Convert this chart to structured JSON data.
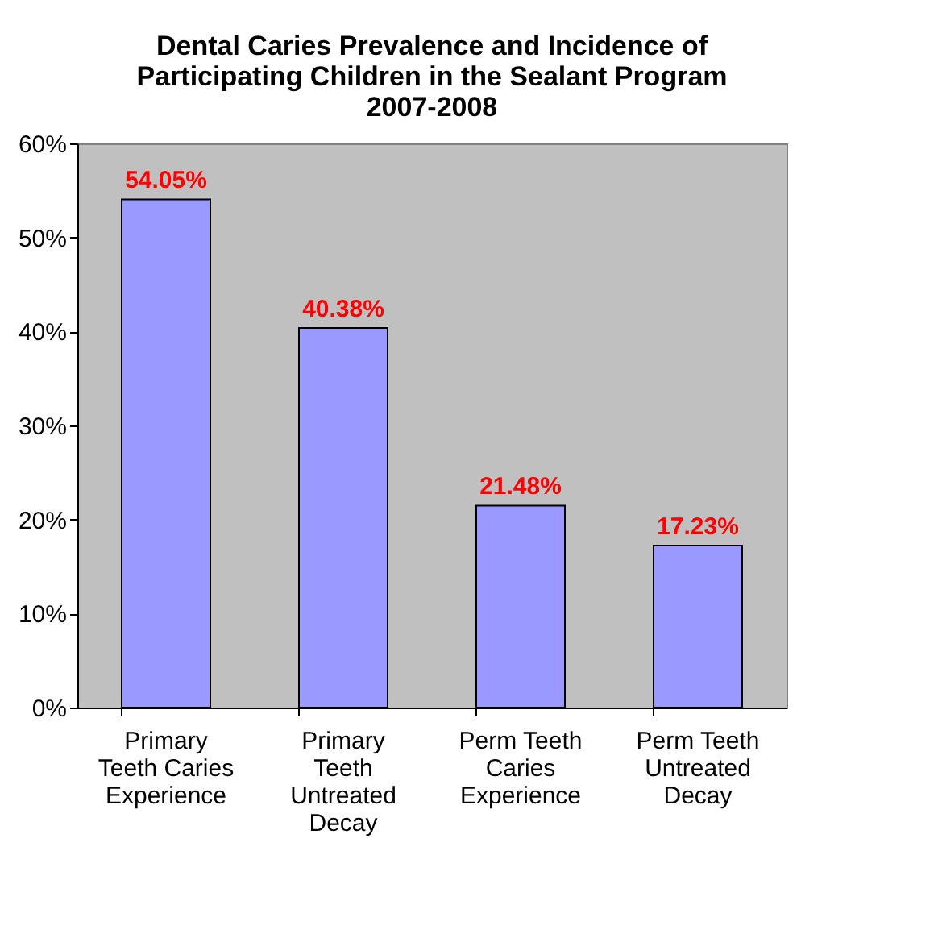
{
  "chart_data": {
    "type": "bar",
    "title": "Dental Caries Prevalence and Incidence of Participating Children in the Sealant Program 2007-2008",
    "categories": [
      "Primary Teeth Caries Experience",
      "Primary Teeth Untreated Decay",
      "Perm Teeth Caries Experience",
      "Perm Teeth Untreated Decay"
    ],
    "values": [
      54.05,
      40.38,
      21.48,
      17.23
    ],
    "value_labels": [
      "54.05%",
      "40.38%",
      "21.48%",
      "17.23%"
    ],
    "color": "#9999ff",
    "ylim": [
      0,
      60
    ],
    "yticks": [
      {
        "value": 0,
        "label": "0%"
      },
      {
        "value": 10,
        "label": "10%"
      },
      {
        "value": 20,
        "label": "20%"
      },
      {
        "value": 30,
        "label": "30%"
      },
      {
        "value": 40,
        "label": "40%"
      },
      {
        "value": 50,
        "label": "50%"
      },
      {
        "value": 60,
        "label": "60%"
      }
    ],
    "grid": false
  }
}
